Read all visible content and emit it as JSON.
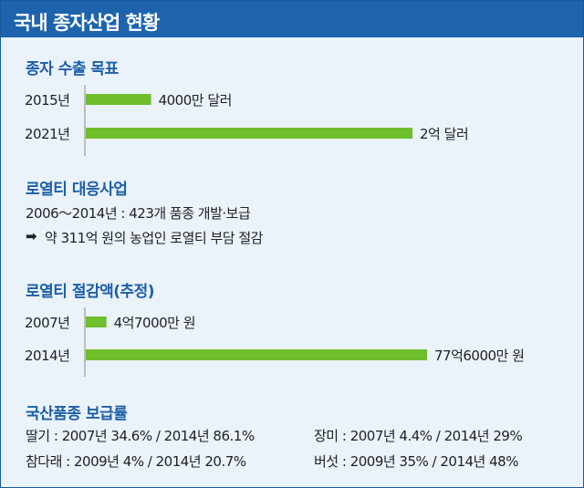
{
  "header": {
    "title": "국내 종자산업 현황"
  },
  "accent_color": "#1d64ad",
  "bar_color": "#6fbe2d",
  "chart_data": [
    {
      "type": "bar",
      "orientation": "horizontal",
      "title": "종자 수출 목표",
      "categories": [
        "2015년",
        "2021년"
      ],
      "values": [
        0.4,
        2.0
      ],
      "unit": "억 달러",
      "value_labels": [
        "4000만 달러",
        "2억 달러"
      ]
    },
    {
      "type": "bar",
      "orientation": "horizontal",
      "title": "로열티 절감액(추정)",
      "categories": [
        "2007년",
        "2014년"
      ],
      "values": [
        4.7,
        77.6
      ],
      "unit": "억 원",
      "value_labels": [
        "4억7000만 원",
        "77억6000만 원"
      ]
    }
  ],
  "royalty_project": {
    "title": "로열티 대응사업",
    "line1": "2006～2014년 : 423개 품종 개발·보급",
    "arrow": "➡",
    "line2": "약 311억 원의 농업인 로열티 부담 절감"
  },
  "domestic_rate": {
    "title": "국산품종 보급률",
    "items": [
      "딸기 : 2007년 34.6% / 2014년 86.1%",
      "장미 : 2007년 4.4% / 2014년 29%",
      "참다래 : 2009년 4% / 2014년 20.7%",
      "버섯 : 2009년 35% / 2014년 48%"
    ]
  }
}
